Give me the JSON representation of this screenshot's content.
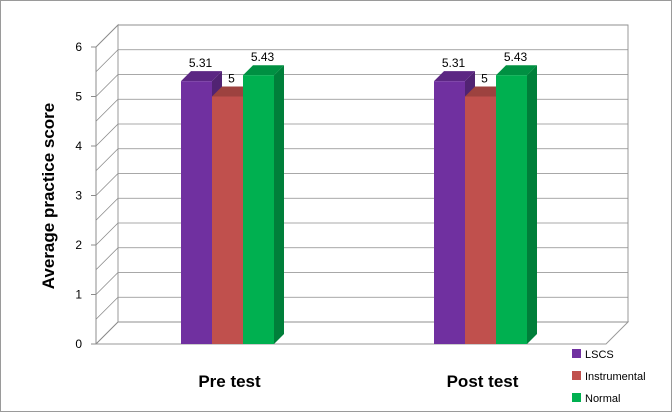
{
  "chart_data": {
    "type": "bar",
    "categories": [
      "Pre test",
      "Post test"
    ],
    "series": [
      {
        "name": "LSCS",
        "values": [
          5.31,
          5.31
        ],
        "color": "#7030a0"
      },
      {
        "name": "Instrumental",
        "values": [
          5,
          5
        ],
        "color": "#c0504d"
      },
      {
        "name": "Normal",
        "values": [
          5.43,
          5.43
        ],
        "color": "#00b050"
      }
    ],
    "data_labels": [
      [
        "5.31",
        "5",
        "5.43"
      ],
      [
        "5.31",
        "5",
        "5.43"
      ]
    ],
    "ylabel": "Average practice score",
    "xlabel": "",
    "ylim": [
      0,
      6
    ],
    "yticks": [
      0,
      1,
      2,
      3,
      4,
      5,
      6
    ],
    "grid": true,
    "three_d": true,
    "legend_position": "bottom-right"
  }
}
